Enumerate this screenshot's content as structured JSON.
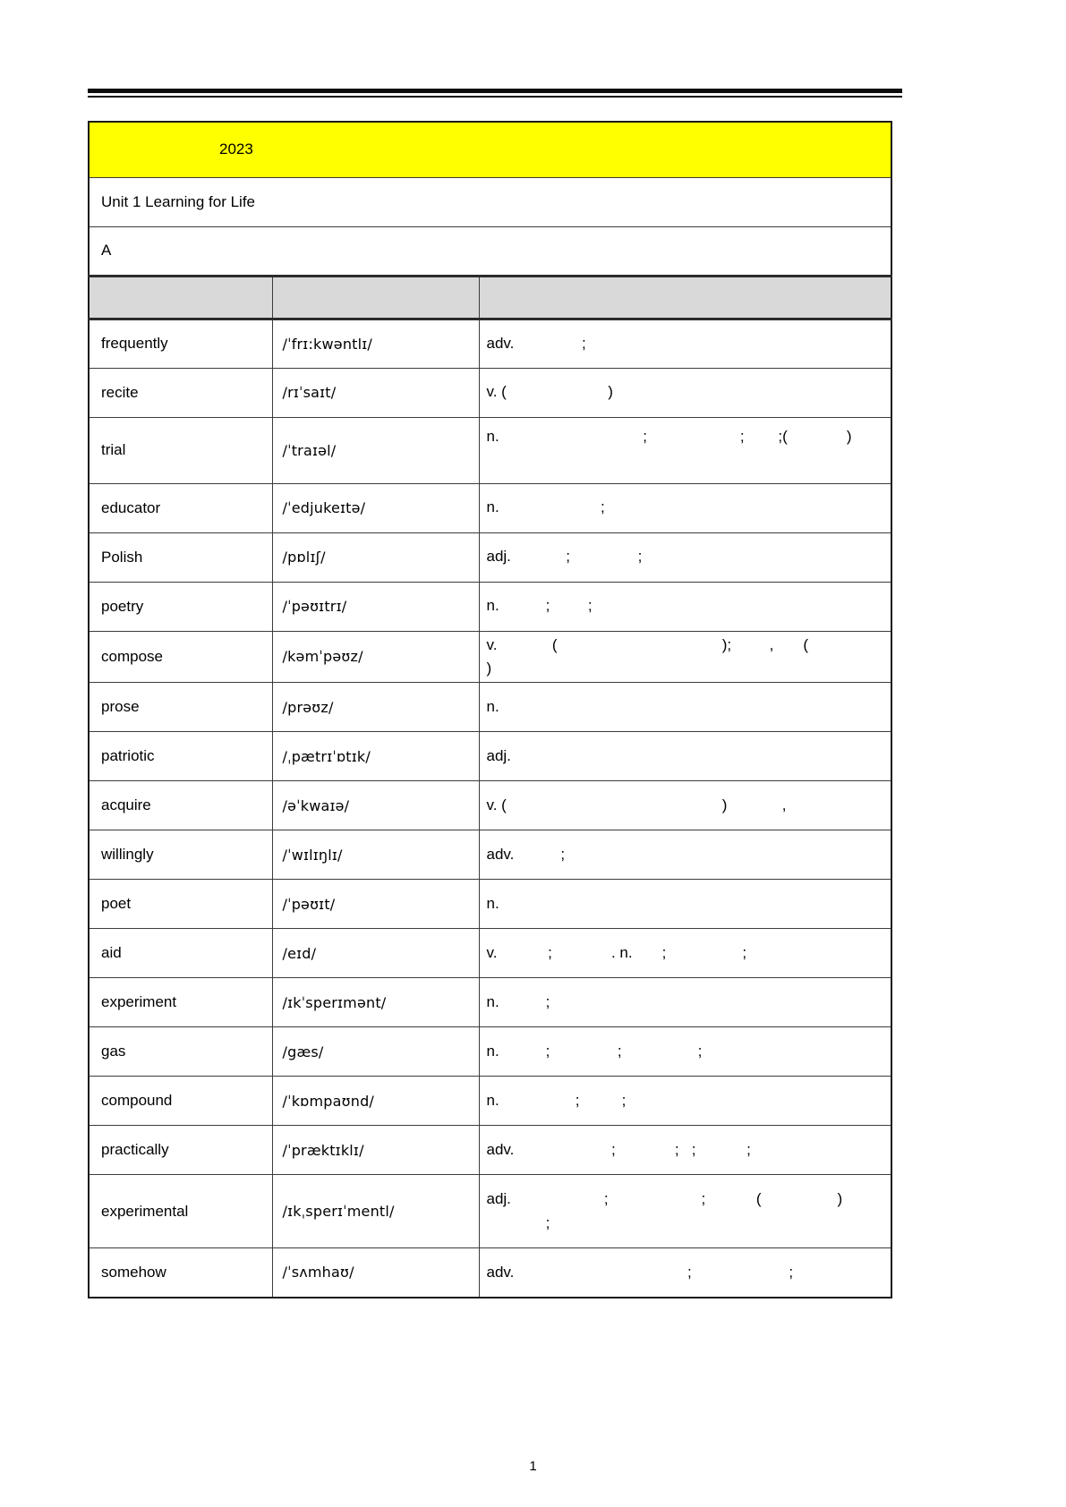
{
  "colors": {
    "highlight_yellow": "#FFFF00",
    "header_gray": "#D9D9D9",
    "border_dark": "#3b3b3b"
  },
  "header": {
    "year_label": "2023",
    "unit_title": "Unit 1 Learning for Life",
    "section_label": "A"
  },
  "table": {
    "column_headers": [
      "",
      "",
      ""
    ],
    "rows": [
      {
        "word": "frequently",
        "phonetic": "/ˈfrɪ:kwəntlɪ/",
        "definition": "adv.                ;"
      },
      {
        "word": "recite",
        "phonetic": "/rɪˈsaɪt/",
        "definition": "v. (                        )"
      },
      {
        "word": "trial",
        "phonetic": "/ˈtraɪəl/",
        "definition": "n.                                  ;                      ;        ;(              )"
      },
      {
        "word": "educator",
        "phonetic": "/ˈedjukeɪtə/",
        "definition": "n.                        ;"
      },
      {
        "word": "Polish",
        "phonetic": "/pɒlɪʃ/",
        "definition": "adj.             ;                ;"
      },
      {
        "word": "poetry",
        "phonetic": "/ˈpəʊɪtrɪ/",
        "definition": "n.           ;         ;"
      },
      {
        "word": "compose",
        "phonetic": "/kəmˈpəʊz/",
        "definition": "v.             (                                       );         ,       (                   )"
      },
      {
        "word": "prose",
        "phonetic": "/prəʊz/",
        "definition": "n."
      },
      {
        "word": "patriotic",
        "phonetic": "/ˌpætrɪˈɒtɪk/",
        "definition": "adj."
      },
      {
        "word": "acquire",
        "phonetic": "/əˈkwaɪə/",
        "definition": "v. (                                                   )             ,"
      },
      {
        "word": "willingly",
        "phonetic": "/ˈwɪlɪŋlɪ/",
        "definition": "adv.           ;"
      },
      {
        "word": "poet",
        "phonetic": "/ˈpəʊɪt/",
        "definition": "n."
      },
      {
        "word": "aid",
        "phonetic": "/eɪd/",
        "definition": "v.            ;              . n.       ;                  ;"
      },
      {
        "word": "experiment",
        "phonetic": "/ɪkˈsperɪmənt/",
        "definition": "n.           ;"
      },
      {
        "word": "gas",
        "phonetic": "/gæs/",
        "definition": "n.           ;                ;                  ;"
      },
      {
        "word": "compound",
        "phonetic": "/ˈkɒmpaʊnd/",
        "definition": "n.                  ;          ;"
      },
      {
        "word": "practically",
        "phonetic": "/ˈpræktɪklɪ/",
        "definition": "adv.                       ;              ;   ;            ;"
      },
      {
        "word": "experimental",
        "phonetic": "/ɪkˌsperɪˈmentl/",
        "definition": "adj.                      ;                      ;            (                  )\n              ;"
      },
      {
        "word": "somehow",
        "phonetic": "/ˈsʌmhaʊ/",
        "definition": "adv.                                         ;                       ;"
      }
    ]
  },
  "footer": {
    "page_number": "1"
  }
}
